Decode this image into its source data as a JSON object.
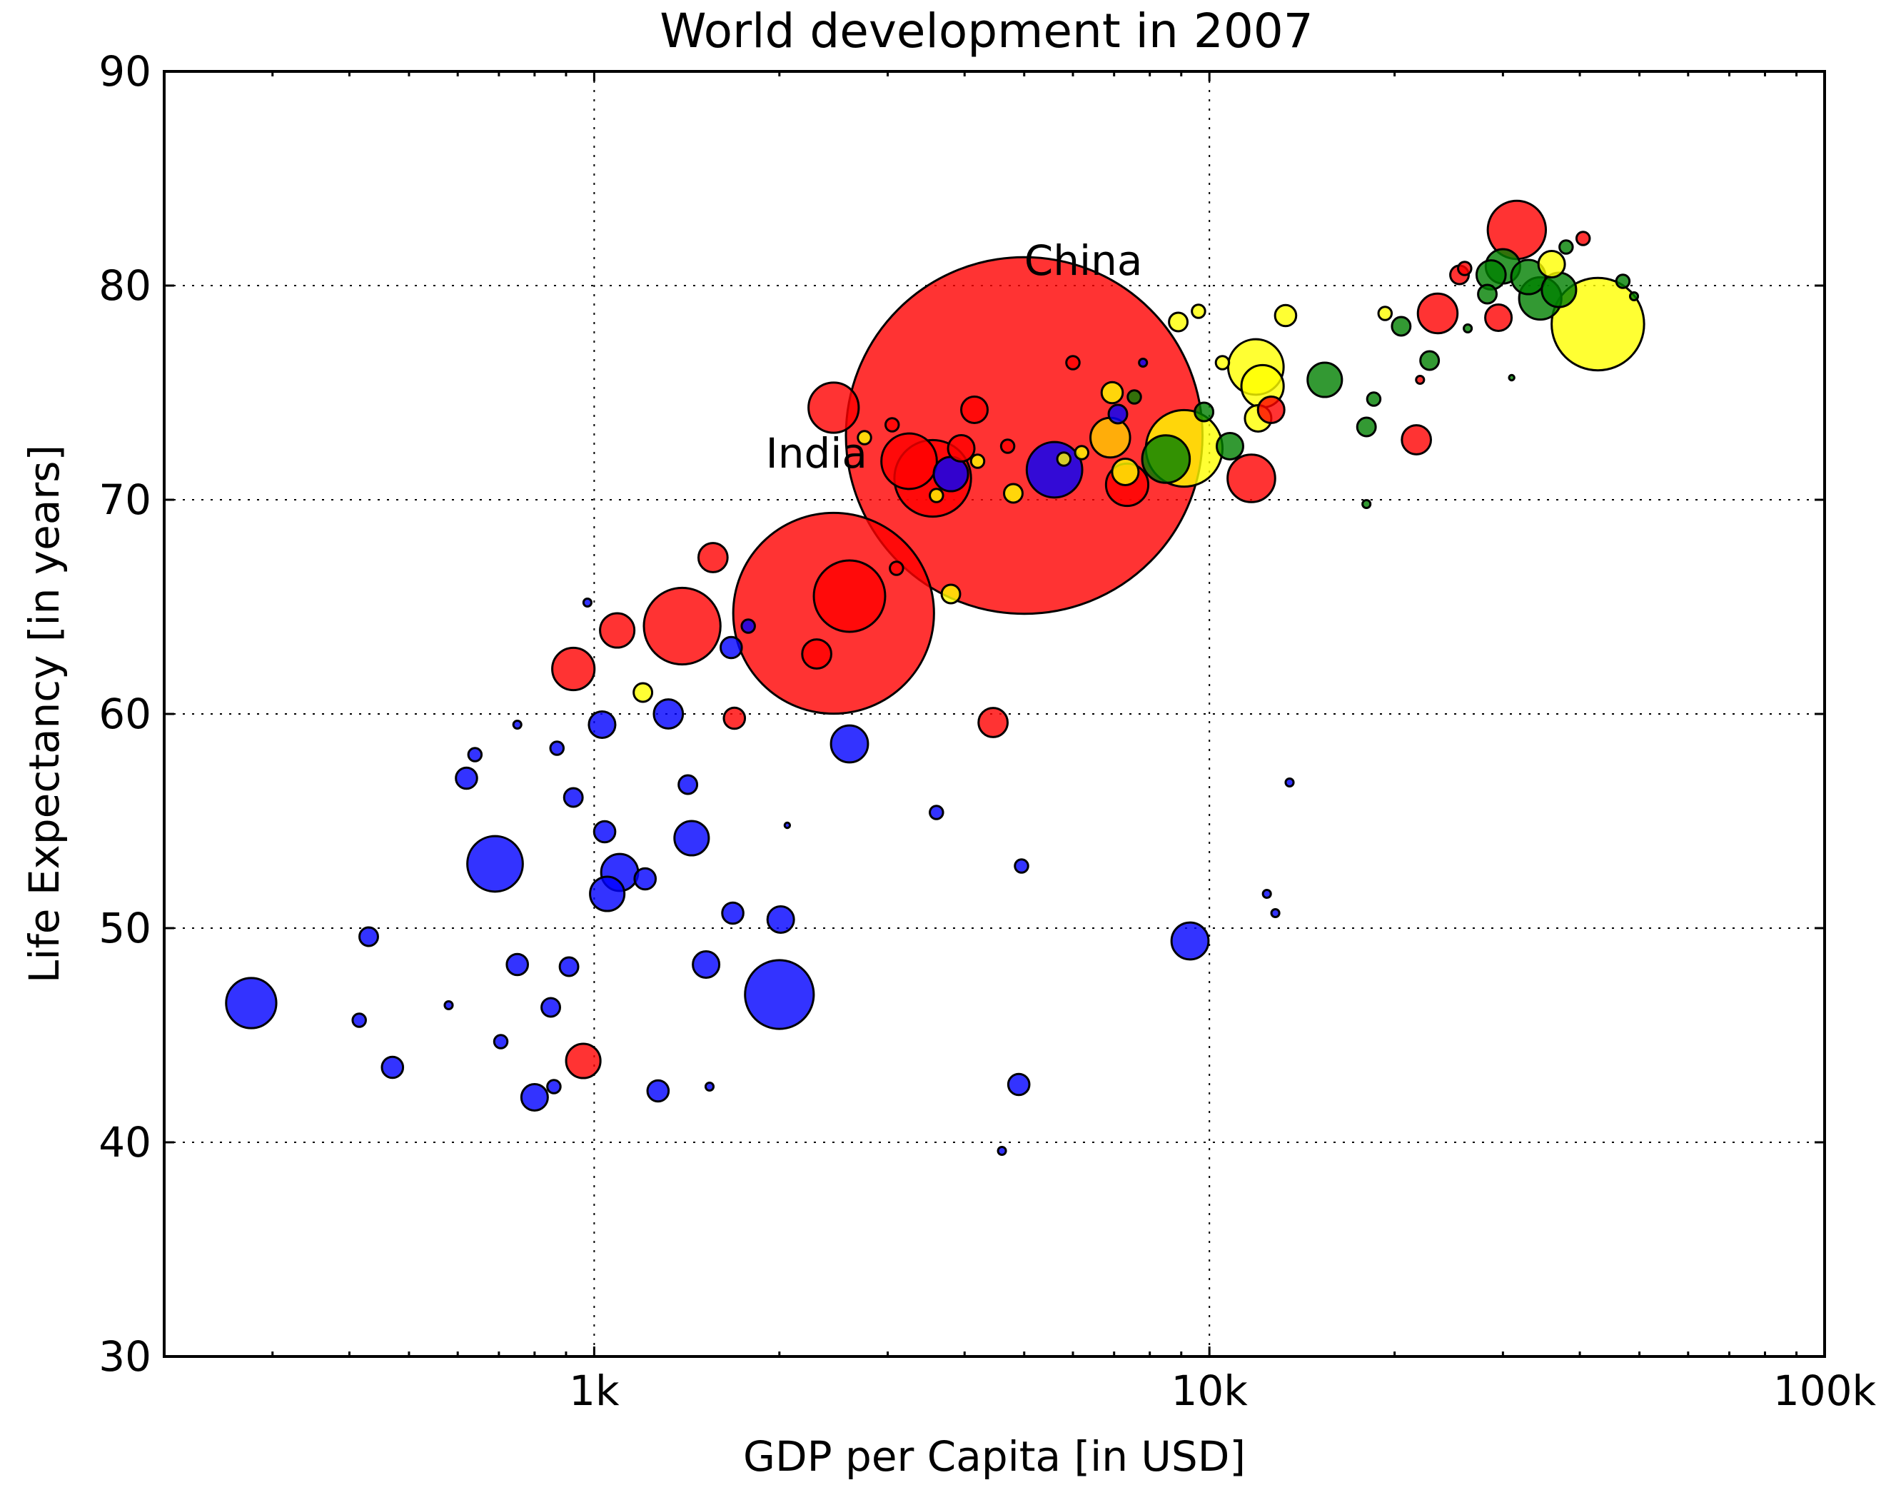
{
  "chart_data": {
    "type": "scatter",
    "title": "World development in 2007",
    "xlabel": "GDP per Capita [in USD]",
    "ylabel": "Life Expectancy [in years]",
    "x_scale": "log",
    "xlim": [
      200,
      100000
    ],
    "ylim": [
      30,
      90
    ],
    "x_ticks": [
      1000,
      10000,
      100000
    ],
    "x_tick_labels": [
      "1k",
      "10k",
      "100k"
    ],
    "y_ticks": [
      30,
      40,
      50,
      60,
      70,
      80,
      90
    ],
    "y_tick_labels": [
      "30",
      "40",
      "50",
      "60",
      "70",
      "80",
      "90"
    ],
    "grid": true,
    "annotations": [
      {
        "text": "China",
        "x": 5000,
        "y": 80.5
      },
      {
        "text": "India",
        "x": 1900,
        "y": 71.5
      }
    ],
    "colors": {
      "blue": "#0000ff",
      "red": "#ff0000",
      "yellow": "#ffff00",
      "green": "#008000",
      "gold": "#ffcc00"
    },
    "points": [
      {
        "x": 277,
        "y": 46.5,
        "size": 19,
        "color": "blue"
      },
      {
        "x": 415,
        "y": 45.7,
        "size": 5,
        "color": "blue"
      },
      {
        "x": 430,
        "y": 49.6,
        "size": 7,
        "color": "blue"
      },
      {
        "x": 470,
        "y": 43.5,
        "size": 8,
        "color": "blue"
      },
      {
        "x": 580,
        "y": 46.4,
        "size": 3,
        "color": "blue"
      },
      {
        "x": 620,
        "y": 57.0,
        "size": 8,
        "color": "blue"
      },
      {
        "x": 640,
        "y": 58.1,
        "size": 5,
        "color": "blue"
      },
      {
        "x": 690,
        "y": 53.0,
        "size": 21,
        "color": "blue"
      },
      {
        "x": 705,
        "y": 44.7,
        "size": 5,
        "color": "blue"
      },
      {
        "x": 750,
        "y": 48.3,
        "size": 8,
        "color": "blue"
      },
      {
        "x": 750,
        "y": 59.5,
        "size": 3,
        "color": "blue"
      },
      {
        "x": 800,
        "y": 42.1,
        "size": 10,
        "color": "blue"
      },
      {
        "x": 850,
        "y": 46.3,
        "size": 7,
        "color": "blue"
      },
      {
        "x": 860,
        "y": 42.6,
        "size": 5,
        "color": "blue"
      },
      {
        "x": 870,
        "y": 58.4,
        "size": 5,
        "color": "blue"
      },
      {
        "x": 910,
        "y": 48.2,
        "size": 7,
        "color": "blue"
      },
      {
        "x": 925,
        "y": 56.1,
        "size": 7,
        "color": "blue"
      },
      {
        "x": 925,
        "y": 62.1,
        "size": 16,
        "color": "red"
      },
      {
        "x": 960,
        "y": 43.8,
        "size": 13,
        "color": "red"
      },
      {
        "x": 975,
        "y": 65.2,
        "size": 3,
        "color": "blue"
      },
      {
        "x": 1030,
        "y": 59.5,
        "size": 10,
        "color": "blue"
      },
      {
        "x": 1040,
        "y": 54.5,
        "size": 8,
        "color": "blue"
      },
      {
        "x": 1050,
        "y": 51.6,
        "size": 13,
        "color": "blue"
      },
      {
        "x": 1090,
        "y": 63.9,
        "size": 13,
        "color": "red"
      },
      {
        "x": 1100,
        "y": 52.6,
        "size": 14,
        "color": "blue"
      },
      {
        "x": 1200,
        "y": 61.0,
        "size": 7,
        "color": "yellow"
      },
      {
        "x": 1210,
        "y": 52.3,
        "size": 8,
        "color": "blue"
      },
      {
        "x": 1270,
        "y": 42.4,
        "size": 8,
        "color": "blue"
      },
      {
        "x": 1320,
        "y": 60.0,
        "size": 11,
        "color": "blue"
      },
      {
        "x": 1390,
        "y": 64.1,
        "size": 29,
        "color": "red"
      },
      {
        "x": 1420,
        "y": 56.7,
        "size": 7,
        "color": "blue"
      },
      {
        "x": 1440,
        "y": 54.2,
        "size": 13,
        "color": "blue"
      },
      {
        "x": 1520,
        "y": 48.3,
        "size": 10,
        "color": "blue"
      },
      {
        "x": 1540,
        "y": 42.6,
        "size": 3,
        "color": "blue"
      },
      {
        "x": 1560,
        "y": 67.3,
        "size": 11,
        "color": "red"
      },
      {
        "x": 1670,
        "y": 63.1,
        "size": 8,
        "color": "blue"
      },
      {
        "x": 1680,
        "y": 50.7,
        "size": 8,
        "color": "blue"
      },
      {
        "x": 1690,
        "y": 59.8,
        "size": 8,
        "color": "red"
      },
      {
        "x": 1780,
        "y": 64.1,
        "size": 5,
        "color": "blue"
      },
      {
        "x": 2000,
        "y": 46.9,
        "size": 26,
        "color": "blue"
      },
      {
        "x": 2010,
        "y": 50.4,
        "size": 10,
        "color": "blue"
      },
      {
        "x": 2060,
        "y": 54.8,
        "size": 2,
        "color": "blue"
      },
      {
        "x": 2300,
        "y": 62.8,
        "size": 11,
        "color": "red"
      },
      {
        "x": 2450,
        "y": 64.7,
        "size": 76,
        "color": "red"
      },
      {
        "x": 2450,
        "y": 74.3,
        "size": 19,
        "color": "red"
      },
      {
        "x": 2600,
        "y": 65.5,
        "size": 27,
        "color": "red"
      },
      {
        "x": 2600,
        "y": 58.6,
        "size": 14,
        "color": "blue"
      },
      {
        "x": 2750,
        "y": 72.9,
        "size": 5,
        "color": "yellow"
      },
      {
        "x": 3050,
        "y": 73.5,
        "size": 5,
        "color": "red"
      },
      {
        "x": 3100,
        "y": 66.8,
        "size": 5,
        "color": "red"
      },
      {
        "x": 3250,
        "y": 71.8,
        "size": 21,
        "color": "red"
      },
      {
        "x": 3550,
        "y": 71.0,
        "size": 29,
        "color": "red"
      },
      {
        "x": 3600,
        "y": 55.4,
        "size": 5,
        "color": "blue"
      },
      {
        "x": 3600,
        "y": 70.2,
        "size": 5,
        "color": "yellow"
      },
      {
        "x": 3800,
        "y": 65.6,
        "size": 7,
        "color": "yellow"
      },
      {
        "x": 3800,
        "y": 71.2,
        "size": 13,
        "color": "blue"
      },
      {
        "x": 3950,
        "y": 72.4,
        "size": 10,
        "color": "red"
      },
      {
        "x": 4150,
        "y": 74.2,
        "size": 10,
        "color": "red"
      },
      {
        "x": 4200,
        "y": 71.8,
        "size": 5,
        "color": "yellow"
      },
      {
        "x": 4450,
        "y": 59.6,
        "size": 11,
        "color": "red"
      },
      {
        "x": 4600,
        "y": 39.6,
        "size": 3,
        "color": "blue"
      },
      {
        "x": 4700,
        "y": 72.5,
        "size": 5,
        "color": "red"
      },
      {
        "x": 4800,
        "y": 70.3,
        "size": 7,
        "color": "yellow"
      },
      {
        "x": 4900,
        "y": 42.7,
        "size": 8,
        "color": "blue"
      },
      {
        "x": 4950,
        "y": 52.9,
        "size": 5,
        "color": "blue"
      },
      {
        "x": 5000,
        "y": 73.0,
        "size": 135,
        "color": "red"
      },
      {
        "x": 5600,
        "y": 71.4,
        "size": 21,
        "color": "blue"
      },
      {
        "x": 5800,
        "y": 71.9,
        "size": 5,
        "color": "yellow"
      },
      {
        "x": 6000,
        "y": 76.4,
        "size": 5,
        "color": "red"
      },
      {
        "x": 6200,
        "y": 72.2,
        "size": 5,
        "color": "yellow"
      },
      {
        "x": 6900,
        "y": 72.9,
        "size": 15,
        "color": "gold"
      },
      {
        "x": 6950,
        "y": 75.0,
        "size": 8,
        "color": "yellow"
      },
      {
        "x": 7100,
        "y": 74.0,
        "size": 7,
        "color": "blue"
      },
      {
        "x": 7300,
        "y": 71.3,
        "size": 10,
        "color": "yellow"
      },
      {
        "x": 7350,
        "y": 70.7,
        "size": 16,
        "color": "red"
      },
      {
        "x": 7550,
        "y": 74.8,
        "size": 5,
        "color": "green"
      },
      {
        "x": 7800,
        "y": 76.4,
        "size": 3,
        "color": "blue"
      },
      {
        "x": 8500,
        "y": 71.9,
        "size": 18,
        "color": "green"
      },
      {
        "x": 8900,
        "y": 78.3,
        "size": 7,
        "color": "yellow"
      },
      {
        "x": 9100,
        "y": 72.4,
        "size": 29,
        "color": "yellow"
      },
      {
        "x": 9300,
        "y": 49.4,
        "size": 14,
        "color": "blue"
      },
      {
        "x": 9600,
        "y": 78.8,
        "size": 5,
        "color": "yellow"
      },
      {
        "x": 9800,
        "y": 74.1,
        "size": 7,
        "color": "green"
      },
      {
        "x": 10500,
        "y": 76.4,
        "size": 5,
        "color": "yellow"
      },
      {
        "x": 10800,
        "y": 72.5,
        "size": 10,
        "color": "green"
      },
      {
        "x": 11700,
        "y": 71.0,
        "size": 18,
        "color": "red"
      },
      {
        "x": 11900,
        "y": 76.2,
        "size": 21,
        "color": "yellow"
      },
      {
        "x": 12000,
        "y": 73.8,
        "size": 10,
        "color": "yellow"
      },
      {
        "x": 12200,
        "y": 75.3,
        "size": 16,
        "color": "yellow"
      },
      {
        "x": 12400,
        "y": 51.6,
        "size": 3,
        "color": "blue"
      },
      {
        "x": 12600,
        "y": 74.2,
        "size": 10,
        "color": "red"
      },
      {
        "x": 12800,
        "y": 50.7,
        "size": 3,
        "color": "blue"
      },
      {
        "x": 13300,
        "y": 78.6,
        "size": 8,
        "color": "yellow"
      },
      {
        "x": 13500,
        "y": 56.8,
        "size": 3,
        "color": "blue"
      },
      {
        "x": 15400,
        "y": 75.6,
        "size": 13,
        "color": "green"
      },
      {
        "x": 18000,
        "y": 69.8,
        "size": 3,
        "color": "green"
      },
      {
        "x": 18000,
        "y": 73.4,
        "size": 7,
        "color": "green"
      },
      {
        "x": 18500,
        "y": 74.7,
        "size": 5,
        "color": "green"
      },
      {
        "x": 19300,
        "y": 78.7,
        "size": 5,
        "color": "yellow"
      },
      {
        "x": 20500,
        "y": 78.1,
        "size": 7,
        "color": "green"
      },
      {
        "x": 21700,
        "y": 72.8,
        "size": 11,
        "color": "red"
      },
      {
        "x": 22000,
        "y": 75.6,
        "size": 3,
        "color": "red"
      },
      {
        "x": 22800,
        "y": 76.5,
        "size": 7,
        "color": "green"
      },
      {
        "x": 23500,
        "y": 78.7,
        "size": 15,
        "color": "red"
      },
      {
        "x": 25500,
        "y": 80.5,
        "size": 7,
        "color": "red"
      },
      {
        "x": 26000,
        "y": 80.8,
        "size": 5,
        "color": "red"
      },
      {
        "x": 26300,
        "y": 78.0,
        "size": 3,
        "color": "green"
      },
      {
        "x": 28300,
        "y": 79.6,
        "size": 7,
        "color": "green"
      },
      {
        "x": 28700,
        "y": 80.5,
        "size": 11,
        "color": "green"
      },
      {
        "x": 29500,
        "y": 78.5,
        "size": 10,
        "color": "red"
      },
      {
        "x": 30000,
        "y": 80.9,
        "size": 13,
        "color": "green"
      },
      {
        "x": 31000,
        "y": 75.7,
        "size": 2,
        "color": "green"
      },
      {
        "x": 31600,
        "y": 82.6,
        "size": 22,
        "color": "red"
      },
      {
        "x": 33000,
        "y": 80.4,
        "size": 13,
        "color": "green"
      },
      {
        "x": 34500,
        "y": 79.4,
        "size": 16,
        "color": "green"
      },
      {
        "x": 36000,
        "y": 81.0,
        "size": 10,
        "color": "yellow"
      },
      {
        "x": 37000,
        "y": 79.8,
        "size": 13,
        "color": "green"
      },
      {
        "x": 38000,
        "y": 81.8,
        "size": 5,
        "color": "green"
      },
      {
        "x": 40500,
        "y": 82.2,
        "size": 5,
        "color": "red"
      },
      {
        "x": 42800,
        "y": 78.2,
        "size": 35,
        "color": "yellow"
      },
      {
        "x": 47000,
        "y": 80.2,
        "size": 5,
        "color": "green"
      },
      {
        "x": 49000,
        "y": 79.5,
        "size": 3,
        "color": "green"
      }
    ]
  }
}
